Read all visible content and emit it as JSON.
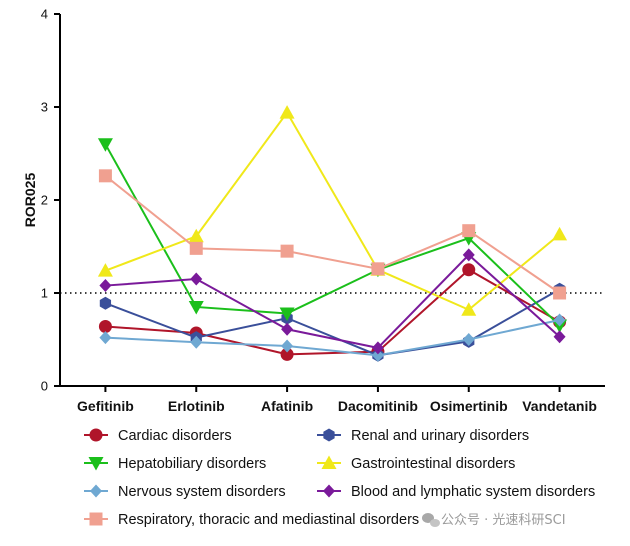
{
  "chart_data": {
    "type": "line",
    "ylabel": "ROR025",
    "xlabel": "",
    "ylim": [
      0,
      4
    ],
    "yticks": [
      "0",
      "1",
      "2",
      "3",
      "4"
    ],
    "reference_line": 1,
    "categories": [
      "Gefitinib",
      "Erlotinib",
      "Afatinib",
      "Dacomitinib",
      "Osimertinib",
      "Vandetanib"
    ],
    "legend_position": "bottom",
    "series": [
      {
        "name": "Cardiac disorders",
        "color": "#b0152a",
        "marker": "circle",
        "values": [
          0.64,
          0.57,
          0.34,
          0.37,
          1.25,
          0.69
        ]
      },
      {
        "name": "Renal and urinary disorders",
        "color": "#3a4f9a",
        "marker": "hexagon",
        "values": [
          0.89,
          0.52,
          0.73,
          0.33,
          0.48,
          1.04
        ]
      },
      {
        "name": "Hepatobiliary disorders",
        "color": "#1bbf1b",
        "marker": "triangle-down",
        "values": [
          2.6,
          0.85,
          0.78,
          1.25,
          1.59,
          0.65
        ]
      },
      {
        "name": "Gastrointestinal disorders",
        "color": "#f0e81a",
        "marker": "triangle-up",
        "values": [
          1.24,
          1.61,
          2.94,
          1.25,
          0.82,
          1.63
        ]
      },
      {
        "name": "Nervous system disorders",
        "color": "#6fa8d2",
        "marker": "diamond",
        "values": [
          0.52,
          0.47,
          0.43,
          0.33,
          0.5,
          0.71
        ]
      },
      {
        "name": "Blood and lymphatic system disorders",
        "color": "#7a1a9a",
        "marker": "diamond",
        "values": [
          1.08,
          1.15,
          0.61,
          0.41,
          1.41,
          0.53
        ]
      },
      {
        "name": "Respiratory, thoracic and mediastinal disorders",
        "color": "#f0a090",
        "marker": "square",
        "values": [
          2.26,
          1.48,
          1.45,
          1.26,
          1.67,
          1.0
        ]
      }
    ]
  },
  "watermark": {
    "text": "公众号 · 光速科研SCI"
  }
}
